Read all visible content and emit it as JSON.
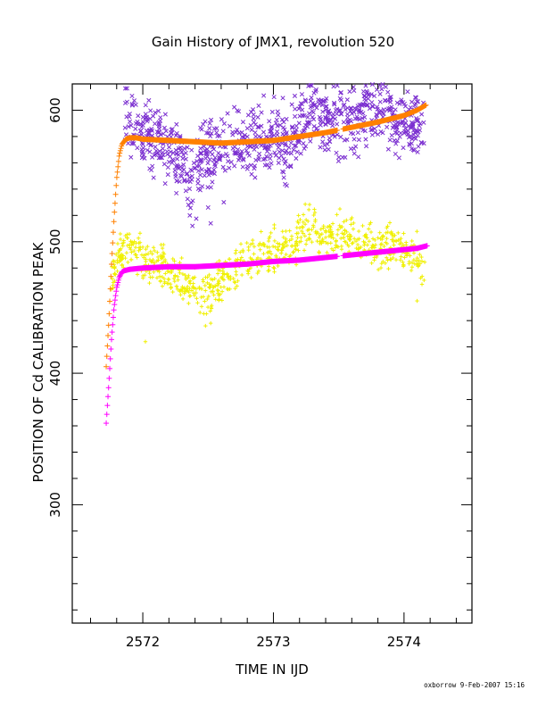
{
  "chart_data": {
    "type": "scatter",
    "title": "Gain History of JMX1, revolution 520",
    "xlabel": "TIME IN IJD",
    "ylabel": "POSITION OF Cd CALIBRATION PEAK",
    "xlim": [
      2571.46,
      2574.52
    ],
    "ylim": [
      210,
      620
    ],
    "xticks": [
      2572,
      2573,
      2574
    ],
    "xtick_labels": [
      "2572",
      "2573",
      "2574"
    ],
    "yticks": [
      300,
      400,
      500,
      600
    ],
    "ytick_labels": [
      "300",
      "400",
      "500",
      "600"
    ],
    "grid": false,
    "legend": "none",
    "series": [
      {
        "marker": "x",
        "color": "#7b2fd0",
        "x": [
          2571.86,
          2571.92,
          2572.0,
          2572.1,
          2572.2,
          2572.3,
          2572.36,
          2572.4,
          2572.45,
          2572.5,
          2572.6,
          2572.7,
          2572.8,
          2572.9,
          2573.0,
          2573.1,
          2573.2,
          2573.3,
          2573.4,
          2573.5,
          2573.6,
          2573.7,
          2573.8,
          2573.9,
          2574.0,
          2574.1,
          2574.16
        ],
        "y": [
          600,
          588,
          582,
          576,
          570,
          560,
          540,
          545,
          560,
          566,
          572,
          575,
          574,
          578,
          580,
          575,
          585,
          600,
          595,
          590,
          592,
          598,
          602,
          596,
          590,
          585,
          588
        ],
        "spread": 28
      },
      {
        "marker": "+",
        "color": "#f0f000",
        "x": [
          2571.76,
          2571.8,
          2571.86,
          2571.92,
          2572.0,
          2572.1,
          2572.2,
          2572.3,
          2572.4,
          2572.5,
          2572.6,
          2572.7,
          2572.8,
          2572.9,
          2573.0,
          2573.1,
          2573.2,
          2573.26,
          2573.3,
          2573.4,
          2573.5,
          2573.6,
          2573.7,
          2573.8,
          2573.9,
          2574.0,
          2574.1,
          2574.16
        ],
        "y": [
          470,
          488,
          494,
          496,
          490,
          482,
          478,
          470,
          464,
          462,
          468,
          478,
          484,
          488,
          492,
          496,
          502,
          512,
          508,
          502,
          506,
          504,
          503,
          500,
          496,
          494,
          488,
          478
        ],
        "spread": 18
      },
      {
        "marker": "+",
        "color": "#ff8000",
        "x": [
          2571.72,
          2571.74,
          2571.76,
          2571.78,
          2571.8,
          2571.82,
          2571.84,
          2571.87,
          2571.9,
          2571.95,
          2572.0,
          2572.2,
          2572.4,
          2572.6,
          2572.8,
          2573.0,
          2573.2,
          2573.4,
          2573.6,
          2573.8,
          2574.0,
          2574.1,
          2574.17
        ],
        "y": [
          405,
          440,
          482,
          518,
          548,
          566,
          574,
          578,
          579,
          579,
          578,
          577,
          576,
          575,
          576,
          577,
          580,
          583,
          587,
          591,
          596,
          600,
          604
        ]
      },
      {
        "marker": "+",
        "color": "#ff00ff",
        "x": [
          2571.72,
          2571.74,
          2571.76,
          2571.78,
          2571.8,
          2571.82,
          2571.84,
          2571.86,
          2571.9,
          2572.0,
          2572.2,
          2572.4,
          2572.6,
          2572.8,
          2573.0,
          2573.2,
          2573.4,
          2573.6,
          2573.8,
          2574.0,
          2574.1,
          2574.18
        ],
        "y": [
          362,
          392,
          425,
          450,
          465,
          473,
          477,
          478,
          479,
          480,
          481,
          481,
          482,
          483,
          485,
          486,
          488,
          490,
          492,
          494,
          495,
          497
        ]
      }
    ]
  },
  "footer": {
    "credit": "oxborrow  9-Feb-2007 15:16"
  }
}
